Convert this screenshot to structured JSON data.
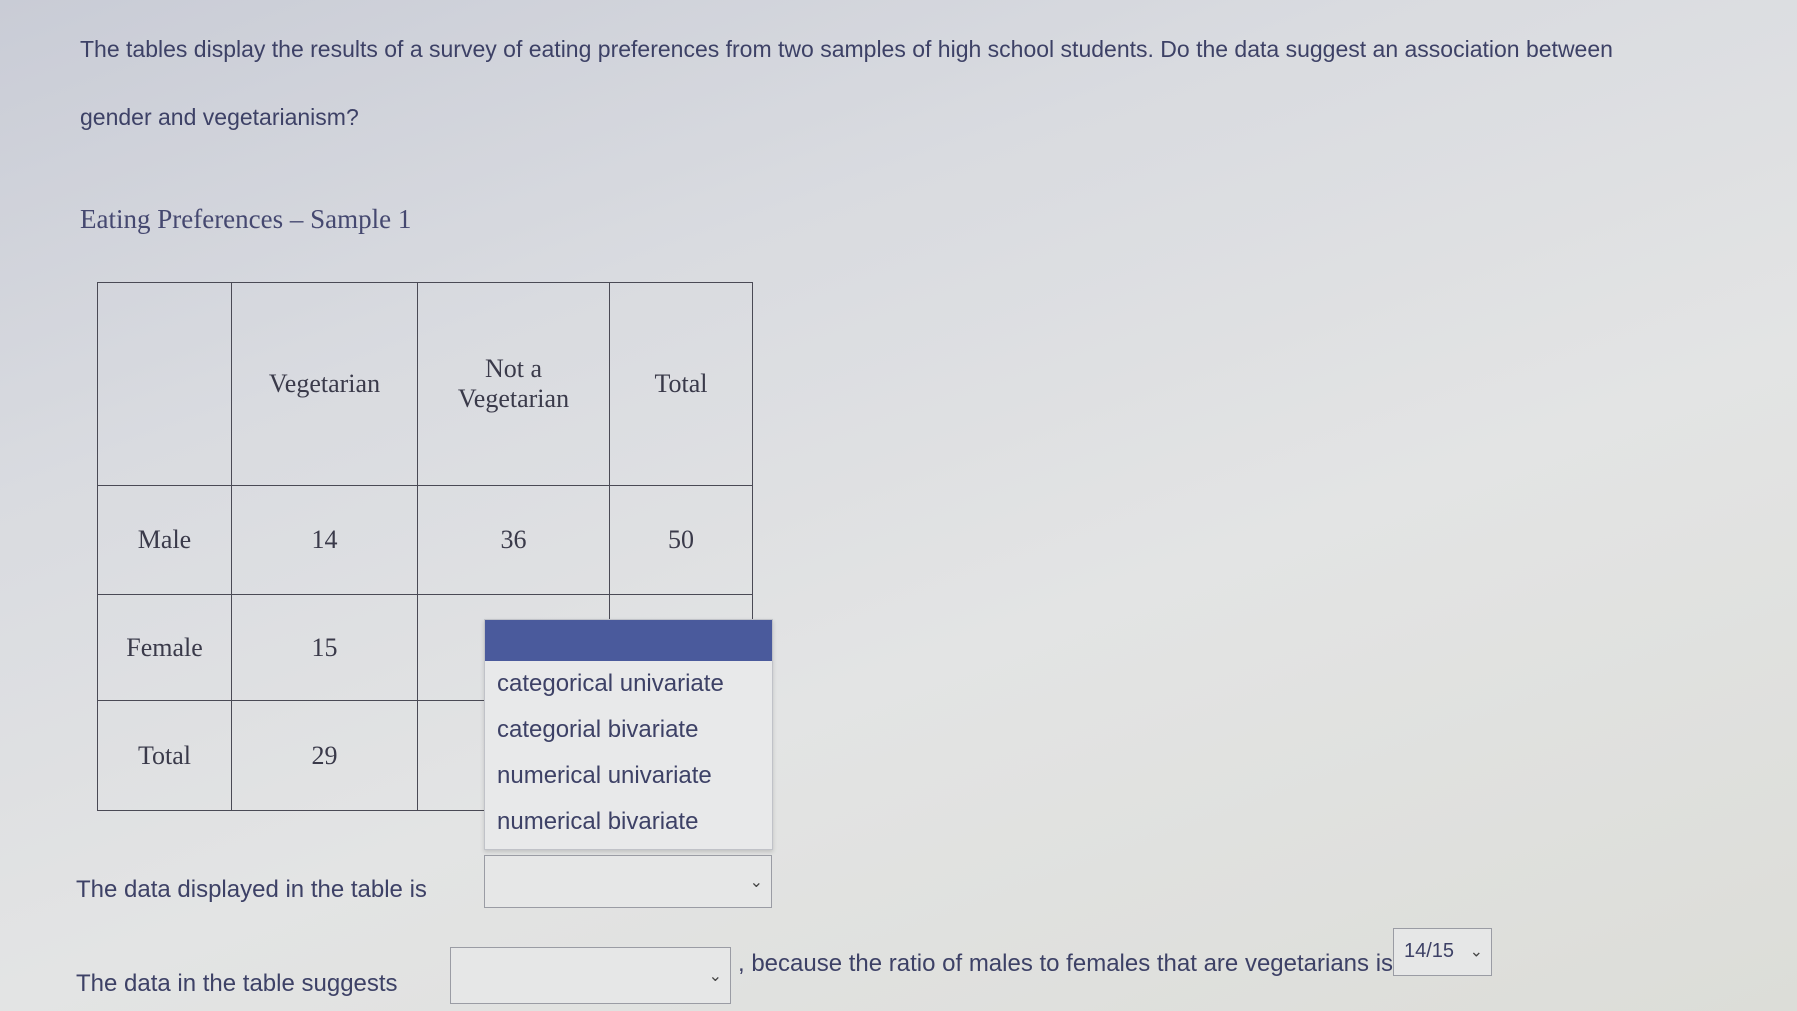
{
  "question": {
    "line1": "The tables display the results of a survey of eating preferences from two samples of high school students.  Do the data suggest an association between",
    "line2": "gender and vegetarianism?"
  },
  "table_title": "Eating Preferences – Sample 1",
  "table": {
    "headers": [
      "",
      "Vegetarian",
      "Not a Vegetarian",
      "Total"
    ],
    "rows": [
      {
        "label": "Male",
        "values": [
          "14",
          "36",
          "50"
        ]
      },
      {
        "label": "Female",
        "values": [
          "15",
          "",
          ""
        ]
      },
      {
        "label": "Total",
        "values": [
          "29",
          "",
          ""
        ]
      }
    ]
  },
  "dropdown_menu": {
    "options": [
      "categorical univariate",
      "categorial bivariate",
      "numerical univariate",
      "numerical bivariate"
    ],
    "highlight_color": "#4a5a9c"
  },
  "q1": {
    "label": "The data displayed in the table is",
    "value": ""
  },
  "q2": {
    "label": "The data in the table suggests",
    "value": "",
    "middle_text": ", because the ratio of males to females that are vegetarians is",
    "ratio_value": "14/15"
  }
}
